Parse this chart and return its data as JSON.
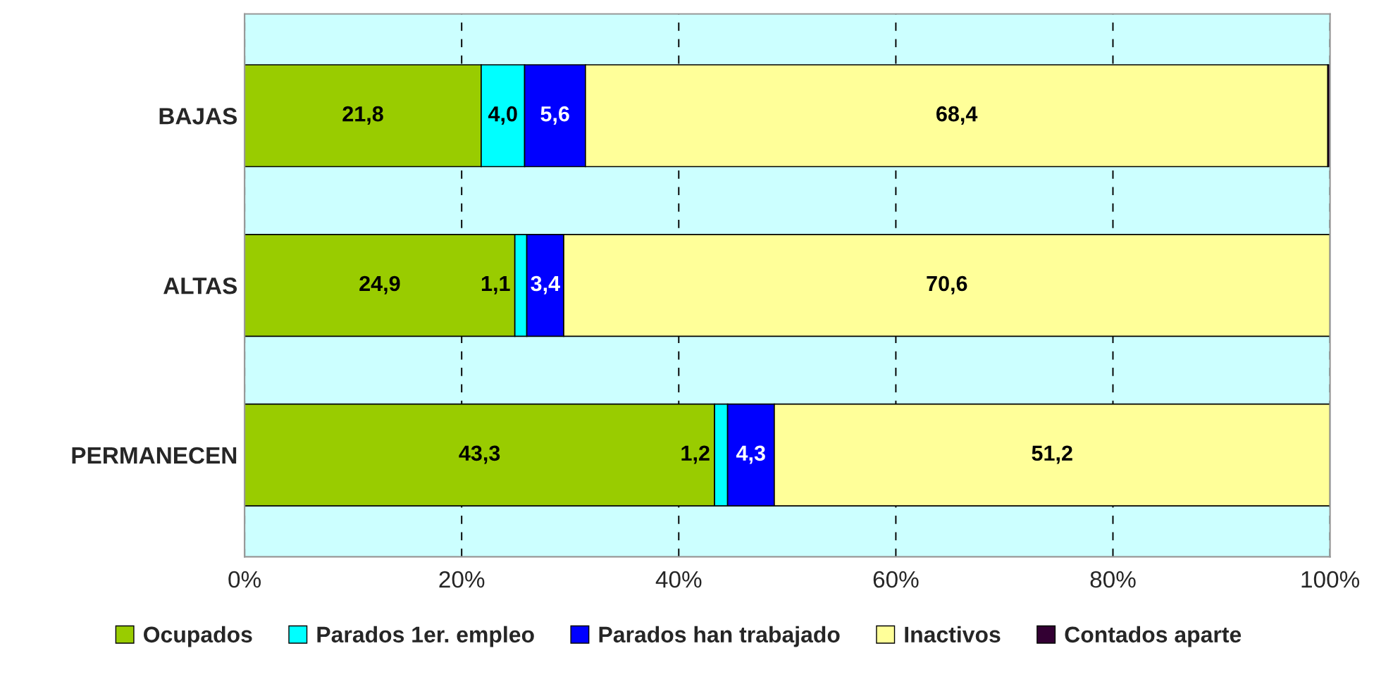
{
  "chart_data": {
    "type": "bar",
    "orientation": "horizontal",
    "stacked": true,
    "categories": [
      "BAJAS",
      "ALTAS",
      "PERMANECEN"
    ],
    "series": [
      {
        "name": "Ocupados",
        "color": "#99cc00",
        "values": [
          21.8,
          24.9,
          43.3
        ],
        "value_labels": [
          "21,8",
          "24,9",
          "43,3"
        ]
      },
      {
        "name": "Parados 1er. empleo",
        "color": "#00ffff",
        "values": [
          4.0,
          1.1,
          1.2
        ],
        "value_labels": [
          "4,0",
          "1,1",
          "1,2"
        ]
      },
      {
        "name": "Parados han trabajado",
        "color": "#0000ff",
        "values": [
          5.6,
          3.4,
          4.3
        ],
        "value_labels": [
          "5,6",
          "3,4",
          "4,3"
        ]
      },
      {
        "name": "Inactivos",
        "color": "#ffff99",
        "values": [
          68.4,
          70.6,
          51.2
        ],
        "value_labels": [
          "68,4",
          "70,6",
          "51,2"
        ]
      },
      {
        "name": "Contados aparte",
        "color": "#330033",
        "values": [
          0.2,
          0.0,
          0.0
        ],
        "value_labels": [
          null,
          null,
          null
        ]
      }
    ],
    "xlim": [
      0,
      100
    ],
    "xticks": [
      {
        "value": 0,
        "label": "0%"
      },
      {
        "value": 20,
        "label": "20%"
      },
      {
        "value": 40,
        "label": "40%"
      },
      {
        "value": 60,
        "label": "60%"
      },
      {
        "value": 80,
        "label": "80%"
      },
      {
        "value": 100,
        "label": "100%"
      }
    ],
    "grid": "x",
    "legend": "bottom"
  }
}
